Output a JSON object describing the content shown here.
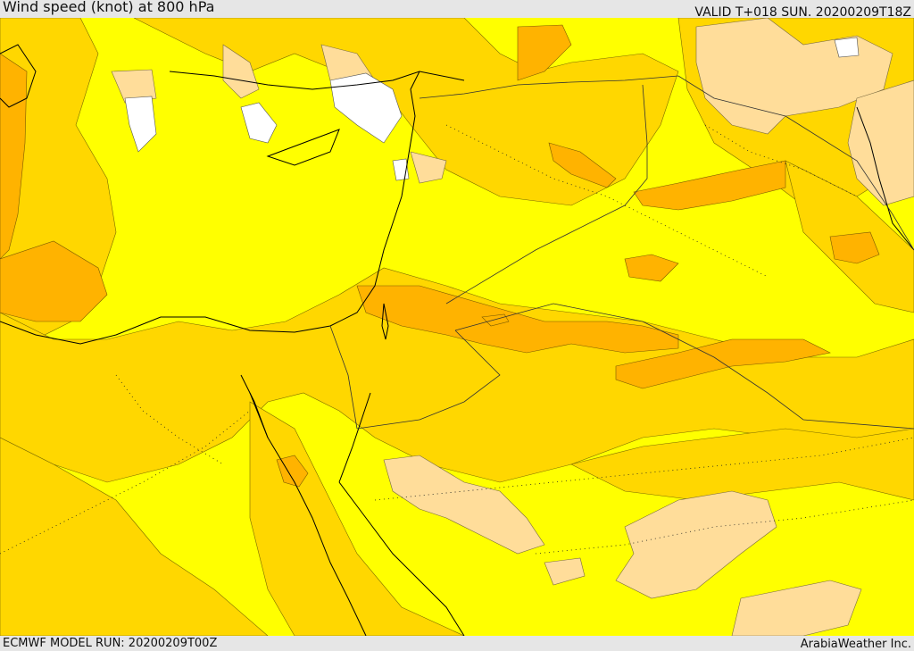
{
  "header": {
    "title": "Wind speed (knot) at 800 hPa",
    "valid": "VALID T+018 SUN. 20200209T18Z"
  },
  "footer": {
    "model_run": "ECMWF MODEL RUN: 20200209T00Z",
    "credit": "ArabiaWeather Inc."
  },
  "map": {
    "colors": {
      "background_band": "#ffff00",
      "band_gold": "#ffd700",
      "band_orange": "#ffb300",
      "band_pale": "#ffdd9a",
      "band_white": "#ffffff",
      "coastline": "#000000",
      "border": "#333333"
    }
  }
}
